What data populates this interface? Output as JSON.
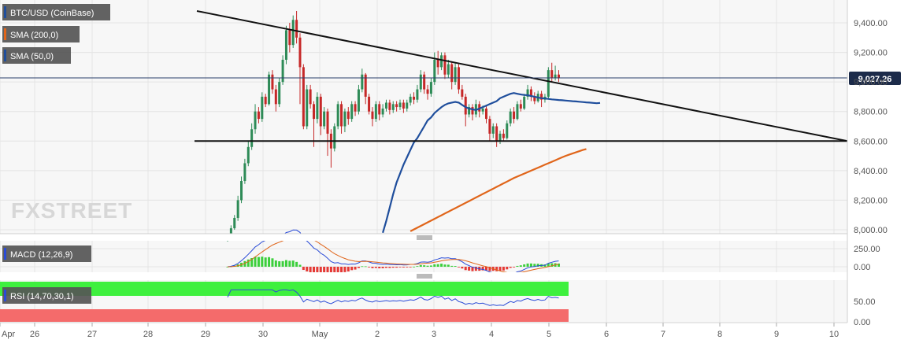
{
  "legends": {
    "main": "BTC/USD (CoinBase)",
    "sma200": "SMA (200,0)",
    "sma50": "SMA (50,0)",
    "macd": "MACD (12,26,9)",
    "rsi": "RSI (14,70,30,1)"
  },
  "watermark": "FXSTREET",
  "last_price_label": "9,027.26",
  "colors": {
    "up": "#2e8b57",
    "down": "#c62828",
    "sma50": "#1f4e9c",
    "sma200": "#e0651a",
    "macd": "#2a4bd7",
    "signal": "#e0651a",
    "hist_pos": "#3ccf3c",
    "hist_neg": "#e53935",
    "rsi_line": "#2a4bd7",
    "rsi_overbought": "#3ef03e",
    "rsi_oversold": "#f46b6b"
  },
  "chart_data": [
    {
      "type": "candlestick",
      "yticks": [
        "9,400.00",
        "9,200.00",
        "9,000.00",
        "8,800.00",
        "8,600.00",
        "8,400.00",
        "8,200.00",
        "8,000.00"
      ],
      "ylim": [
        7960,
        9500
      ],
      "xticks": [
        "Apr",
        "26",
        "27",
        "28",
        "29",
        "30",
        "May",
        "2",
        "3",
        "4",
        "5",
        "6",
        "7",
        "8",
        "9",
        "10"
      ],
      "last_price": 9027.26,
      "candles": [
        [
          7930,
          7960,
          7920,
          7975
        ],
        [
          7960,
          8010,
          7950,
          8030
        ],
        [
          8010,
          8080,
          8000,
          8100
        ],
        [
          8080,
          8200,
          8060,
          8230
        ],
        [
          8200,
          8330,
          8180,
          8360
        ],
        [
          8330,
          8450,
          8310,
          8480
        ],
        [
          8450,
          8560,
          8430,
          8600
        ],
        [
          8560,
          8680,
          8540,
          8720
        ],
        [
          8680,
          8800,
          8650,
          8850
        ],
        [
          8800,
          8750,
          8720,
          8830
        ],
        [
          8750,
          8900,
          8730,
          8930
        ],
        [
          8900,
          8850,
          8830,
          8920
        ],
        [
          8850,
          9050,
          8840,
          9070
        ],
        [
          9050,
          8950,
          8920,
          9080
        ],
        [
          8950,
          8850,
          8800,
          8980
        ],
        [
          8850,
          9000,
          8830,
          9030
        ],
        [
          9000,
          9150,
          8980,
          9180
        ],
        [
          9150,
          9350,
          9120,
          9380
        ],
        [
          9350,
          9250,
          9200,
          9400
        ],
        [
          9250,
          9420,
          9230,
          9450
        ],
        [
          9420,
          9300,
          9260,
          9480
        ],
        [
          9300,
          9100,
          8850,
          9330
        ],
        [
          9100,
          8700,
          8680,
          9120
        ],
        [
          8700,
          8950,
          8680,
          8980
        ],
        [
          8950,
          8850,
          8820,
          8980
        ],
        [
          8850,
          8750,
          8560,
          8870
        ],
        [
          8750,
          8900,
          8720,
          8930
        ],
        [
          8900,
          8700,
          8640,
          8920
        ],
        [
          8700,
          8800,
          8680,
          8830
        ],
        [
          8800,
          8650,
          8500,
          8820
        ],
        [
          8650,
          8550,
          8420,
          8680
        ],
        [
          8550,
          8700,
          8530,
          8720
        ],
        [
          8700,
          8850,
          8680,
          8870
        ],
        [
          8850,
          8700,
          8650,
          8870
        ],
        [
          8700,
          8800,
          8660,
          8820
        ],
        [
          8800,
          8750,
          8710,
          8830
        ],
        [
          8750,
          8850,
          8730,
          8870
        ],
        [
          8850,
          8800,
          8770,
          8870
        ],
        [
          8800,
          8950,
          8780,
          8980
        ],
        [
          8950,
          9050,
          8930,
          9090
        ],
        [
          9050,
          8900,
          8850,
          9060
        ],
        [
          8900,
          8800,
          8780,
          8920
        ],
        [
          8800,
          8750,
          8700,
          8830
        ],
        [
          8750,
          8850,
          8730,
          8870
        ],
        [
          8850,
          8780,
          8740,
          8870
        ],
        [
          8780,
          8820,
          8760,
          8850
        ],
        [
          8820,
          8860,
          8800,
          8880
        ],
        [
          8860,
          8810,
          8780,
          8880
        ],
        [
          8810,
          8850,
          8790,
          8870
        ],
        [
          8850,
          8830,
          8800,
          8870
        ],
        [
          8830,
          8860,
          8810,
          8880
        ],
        [
          8860,
          8820,
          8790,
          8880
        ],
        [
          8820,
          8860,
          8800,
          8880
        ],
        [
          8860,
          8900,
          8840,
          8920
        ],
        [
          8900,
          8880,
          8850,
          8930
        ],
        [
          8880,
          8950,
          8860,
          8980
        ],
        [
          8950,
          9050,
          8930,
          9080
        ],
        [
          9050,
          8950,
          8920,
          9070
        ],
        [
          8950,
          8920,
          8880,
          8980
        ],
        [
          8920,
          9000,
          8900,
          9030
        ],
        [
          9000,
          9150,
          8980,
          9200
        ],
        [
          9150,
          9100,
          9050,
          9210
        ],
        [
          9100,
          9180,
          9080,
          9200
        ],
        [
          9180,
          9050,
          9020,
          9200
        ],
        [
          9050,
          9120,
          9030,
          9150
        ],
        [
          9120,
          9000,
          8950,
          9140
        ],
        [
          9000,
          9100,
          8980,
          9130
        ],
        [
          9100,
          8950,
          8920,
          9120
        ],
        [
          8950,
          8900,
          8880,
          8980
        ],
        [
          8900,
          8780,
          8700,
          8920
        ],
        [
          8780,
          8830,
          8760,
          8850
        ],
        [
          8830,
          8780,
          8740,
          8850
        ],
        [
          8780,
          8850,
          8760,
          8880
        ],
        [
          8850,
          8800,
          8760,
          8870
        ],
        [
          8800,
          8820,
          8780,
          8840
        ],
        [
          8820,
          8750,
          8720,
          8840
        ],
        [
          8750,
          8650,
          8600,
          8770
        ],
        [
          8650,
          8700,
          8620,
          8720
        ],
        [
          8700,
          8600,
          8560,
          8720
        ],
        [
          8600,
          8650,
          8580,
          8670
        ],
        [
          8650,
          8620,
          8600,
          8680
        ],
        [
          8620,
          8720,
          8610,
          8740
        ],
        [
          8720,
          8800,
          8700,
          8820
        ],
        [
          8800,
          8750,
          8720,
          8830
        ],
        [
          8750,
          8850,
          8740,
          8870
        ],
        [
          8850,
          8820,
          8800,
          8880
        ],
        [
          8820,
          8900,
          8810,
          8920
        ],
        [
          8900,
          8950,
          8880,
          8980
        ],
        [
          8950,
          8900,
          8870,
          8970
        ],
        [
          8900,
          8870,
          8850,
          8930
        ],
        [
          8870,
          8920,
          8860,
          8940
        ],
        [
          8920,
          8880,
          8830,
          8940
        ],
        [
          8880,
          8900,
          8860,
          8920
        ],
        [
          8900,
          9080,
          8890,
          9100
        ],
        [
          9080,
          9030,
          9000,
          9130
        ],
        [
          9030,
          9050,
          9010,
          9110
        ],
        [
          9050,
          9027,
          9000,
          9080
        ]
      ],
      "sma50": {
        "x_start": 45,
        "values": [
          7980,
          8060,
          8150,
          8240,
          8320,
          8380,
          8440,
          8490,
          8540,
          8590,
          8620,
          8660,
          8700,
          8740,
          8760,
          8790,
          8810,
          8830,
          8845,
          8855,
          8860,
          8865,
          8860,
          8845,
          8830,
          8820,
          8815,
          8810,
          8820,
          8830,
          8840,
          8850,
          8860,
          8870,
          8890,
          8900,
          8910,
          8920,
          8925,
          8920,
          8915,
          8912,
          8910,
          8905,
          8900,
          8895,
          8890,
          8888,
          8885,
          8882,
          8880,
          8878,
          8876,
          8874,
          8872,
          8870,
          8868,
          8866,
          8864,
          8862,
          8860,
          8858,
          8856,
          8858
        ]
      },
      "sma200": {
        "x_start": 53,
        "values": [
          7990,
          8002,
          8014,
          8026,
          8038,
          8050,
          8062,
          8074,
          8086,
          8098,
          8110,
          8122,
          8134,
          8146,
          8158,
          8170,
          8182,
          8194,
          8206,
          8218,
          8230,
          8242,
          8254,
          8266,
          8278,
          8290,
          8302,
          8314,
          8326,
          8338,
          8350,
          8360,
          8370,
          8380,
          8390,
          8400,
          8410,
          8420,
          8430,
          8440,
          8450,
          8460,
          8470,
          8480,
          8490,
          8500,
          8508,
          8516,
          8524,
          8532,
          8540,
          8546
        ]
      },
      "trendlines": [
        {
          "from": [
            20,
            9480
          ],
          "to": [
            149,
            8600
          ]
        },
        {
          "from": [
            20,
            8600
          ],
          "to": [
            149,
            8600
          ]
        }
      ]
    },
    {
      "type": "macd",
      "yticks": [
        "250.00",
        "0.00"
      ],
      "ylim": [
        -70,
        300
      ]
    },
    {
      "type": "rsi",
      "yticks": [
        "50.00",
        "0.00"
      ],
      "ylim": [
        0,
        100
      ],
      "overbought": 70,
      "oversold": 30
    }
  ]
}
